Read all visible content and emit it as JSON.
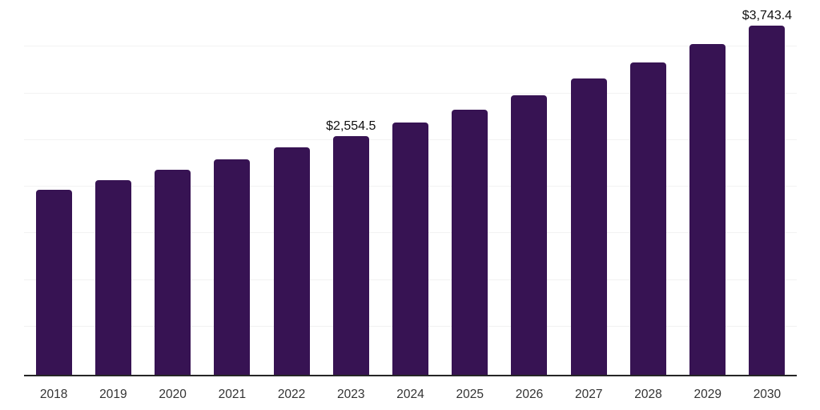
{
  "chart_data": {
    "type": "bar",
    "title": "",
    "xlabel": "",
    "ylabel": "",
    "categories": [
      "2018",
      "2019",
      "2020",
      "2021",
      "2022",
      "2023",
      "2024",
      "2025",
      "2026",
      "2027",
      "2028",
      "2029",
      "2030"
    ],
    "values": [
      1981,
      2085,
      2196,
      2307,
      2435,
      2554.5,
      2701,
      2843,
      3000,
      3180,
      3352,
      3547,
      3743.4
    ],
    "data_labels": [
      "",
      "",
      "",
      "",
      "",
      "$2,554.5",
      "",
      "",
      "",
      "",
      "",
      "",
      "$3,743.4"
    ],
    "ylim": [
      0,
      4000
    ],
    "grid_step": 500,
    "grid": "horizontal",
    "legend_position": "none",
    "colors": {
      "bar": "#371353",
      "gridline": "#f2f2f2",
      "axis_line": "#262626",
      "tick_text": "#333333",
      "label_text": "#111111",
      "background": "#ffffff"
    }
  }
}
